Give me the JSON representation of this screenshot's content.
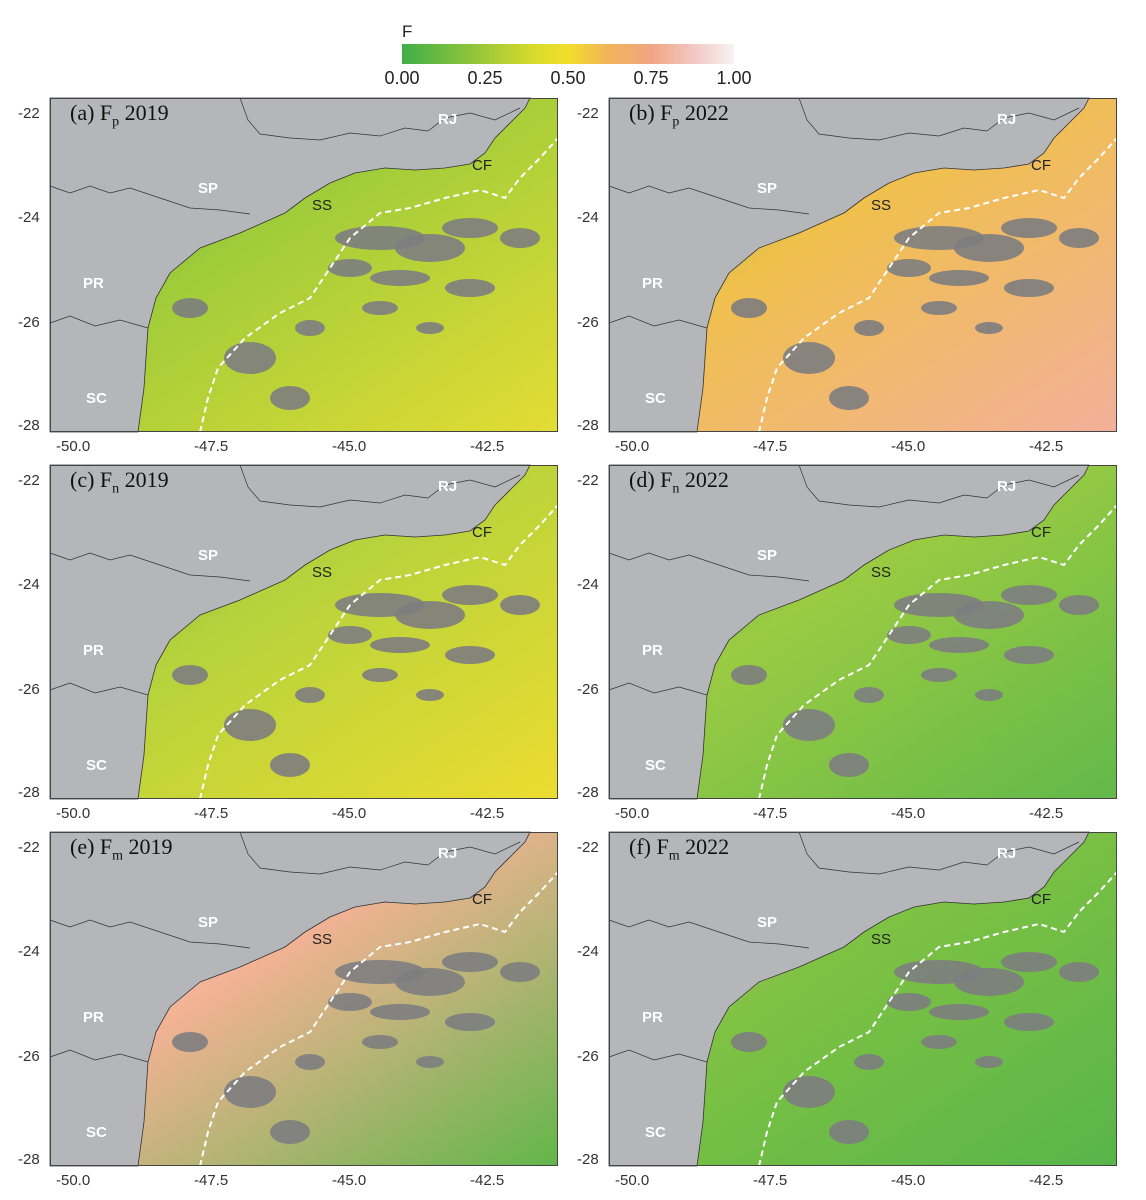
{
  "colors": {
    "land": "#b5b6b9",
    "cloud": "#7d7d80",
    "frame": "#444444"
  },
  "legend": {
    "title": "F",
    "ticks": [
      "0.00",
      "0.25",
      "0.50",
      "0.75",
      "1.00"
    ]
  },
  "axes": {
    "y_ticks": [
      "-22",
      "-24",
      "-26",
      "-28"
    ],
    "x_ticks": [
      "-50.0",
      "-47.5",
      "-45.0",
      "-42.5"
    ]
  },
  "regions": [
    "SP",
    "PR",
    "SC",
    "RJ",
    "SS",
    "CF"
  ],
  "panels": [
    {
      "letter": "(a)",
      "var": "F",
      "sub": "p",
      "year": "2019"
    },
    {
      "letter": "(b)",
      "var": "F",
      "sub": "p",
      "year": "2022"
    },
    {
      "letter": "(c)",
      "var": "F",
      "sub": "n",
      "year": "2019"
    },
    {
      "letter": "(d)",
      "var": "F",
      "sub": "n",
      "year": "2022"
    },
    {
      "letter": "(e)",
      "var": "F",
      "sub": "m",
      "year": "2019"
    },
    {
      "letter": "(f)",
      "var": "F",
      "sub": "m",
      "year": "2022"
    }
  ]
}
